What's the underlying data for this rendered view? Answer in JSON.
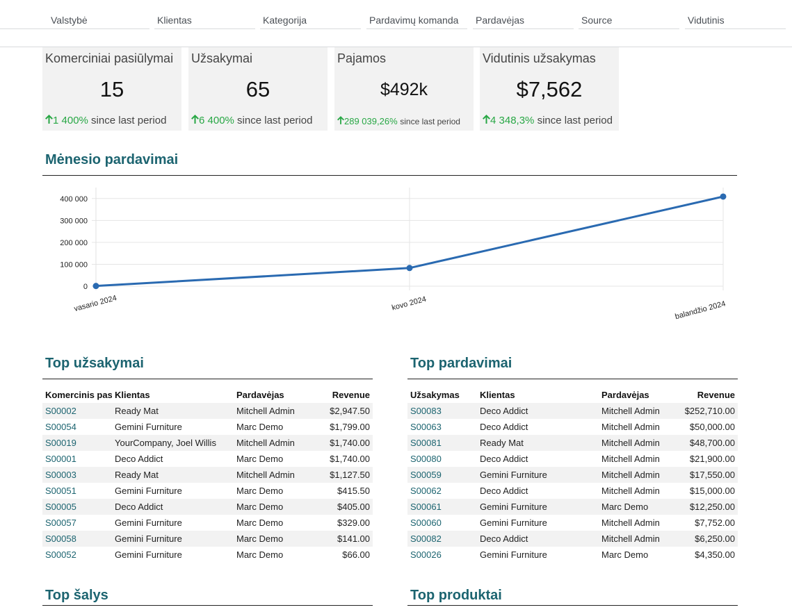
{
  "filters": [
    "Valstybė",
    "Klientas",
    "Kategorija",
    "Pardavimų komanda",
    "Pardavėjas",
    "Source",
    "Vidutinis"
  ],
  "kpis": [
    {
      "title": "Komerciniai pasiūlymai",
      "value": "15",
      "delta": "1 400%",
      "since": "since last period"
    },
    {
      "title": "Užsakymai",
      "value": "65",
      "delta": "6 400%",
      "since": "since last period"
    },
    {
      "title": "Pajamos",
      "value": "$492k",
      "delta": "289 039,26%",
      "since": "since last period"
    },
    {
      "title": "Vidutinis užsakymas",
      "value": "$7,562",
      "delta": "4 348,3%",
      "since": "since last period"
    }
  ],
  "sections": {
    "monthly": "Mėnesio pardavimai",
    "top_quotes": "Top užsakymai",
    "top_sales": "Top pardavimai",
    "top_countries": "Top šalys",
    "top_products": "Top produktai"
  },
  "chart_data": {
    "type": "line",
    "categories": [
      "vasario 2024",
      "kovo 2024",
      "balandžio 2024"
    ],
    "series": [
      {
        "values": [
          1000,
          83000,
          409000
        ]
      }
    ],
    "ylim": [
      0,
      450000
    ],
    "yticks": [
      0,
      100000,
      200000,
      300000,
      400000
    ],
    "ytick_labels": [
      "0",
      "100 000",
      "200 000",
      "300 000",
      "400 000"
    ],
    "grid": true,
    "color": "#2a6ab1"
  },
  "top_quotes": {
    "headers": [
      "Komercinis pas",
      "Klientas",
      "Pardavėjas",
      "Revenue"
    ],
    "rows": [
      [
        "S00002",
        "Ready Mat",
        "Mitchell Admin",
        "$2,947.50"
      ],
      [
        "S00054",
        "Gemini Furniture",
        "Marc Demo",
        "$1,799.00"
      ],
      [
        "S00019",
        "YourCompany, Joel Willis",
        "Mitchell Admin",
        "$1,740.00"
      ],
      [
        "S00001",
        "Deco Addict",
        "Marc Demo",
        "$1,740.00"
      ],
      [
        "S00003",
        "Ready Mat",
        "Mitchell Admin",
        "$1,127.50"
      ],
      [
        "S00051",
        "Gemini Furniture",
        "Marc Demo",
        "$415.50"
      ],
      [
        "S00005",
        "Deco Addict",
        "Marc Demo",
        "$405.00"
      ],
      [
        "S00057",
        "Gemini Furniture",
        "Marc Demo",
        "$329.00"
      ],
      [
        "S00058",
        "Gemini Furniture",
        "Marc Demo",
        "$141.00"
      ],
      [
        "S00052",
        "Gemini Furniture",
        "Marc Demo",
        "$66.00"
      ]
    ]
  },
  "top_sales": {
    "headers": [
      "Užsakymas",
      "Klientas",
      "Pardavėjas",
      "Revenue"
    ],
    "rows": [
      [
        "S00083",
        "Deco Addict",
        "Mitchell Admin",
        "$252,710.00"
      ],
      [
        "S00063",
        "Deco Addict",
        "Mitchell Admin",
        "$50,000.00"
      ],
      [
        "S00081",
        "Ready Mat",
        "Mitchell Admin",
        "$48,700.00"
      ],
      [
        "S00080",
        "Deco Addict",
        "Mitchell Admin",
        "$21,900.00"
      ],
      [
        "S00059",
        "Gemini Furniture",
        "Mitchell Admin",
        "$17,550.00"
      ],
      [
        "S00062",
        "Deco Addict",
        "Mitchell Admin",
        "$15,000.00"
      ],
      [
        "S00061",
        "Gemini Furniture",
        "Marc Demo",
        "$12,250.00"
      ],
      [
        "S00060",
        "Gemini Furniture",
        "Mitchell Admin",
        "$7,752.00"
      ],
      [
        "S00082",
        "Deco Addict",
        "Mitchell Admin",
        "$6,250.00"
      ],
      [
        "S00026",
        "Gemini Furniture",
        "Marc Demo",
        "$4,350.00"
      ]
    ]
  },
  "colors": {
    "accent": "#1c6470",
    "positive": "#28a745",
    "panel": "#f2f2f2",
    "line": "#2a6ab1"
  },
  "icons": {
    "delta": "arrow-up-icon"
  }
}
